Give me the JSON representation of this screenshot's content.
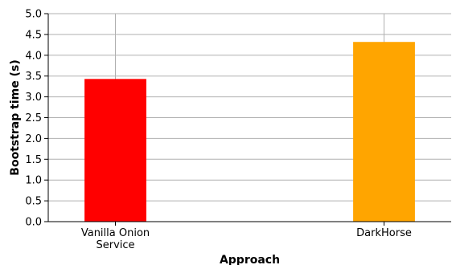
{
  "chart_data": {
    "type": "bar",
    "categories": [
      [
        "Vanilla Onion",
        "Service"
      ],
      [
        "DarkHorse"
      ]
    ],
    "values": [
      3.43,
      4.32
    ],
    "colors": [
      "#ff0000",
      "#ffa500"
    ],
    "xlabel": "Approach",
    "ylabel": "Bootstrap time (s)",
    "ylim": [
      0,
      5.0
    ],
    "yticks": [
      "0.0",
      "0.5",
      "1.0",
      "1.5",
      "2.0",
      "2.5",
      "3.0",
      "3.5",
      "4.0",
      "4.5",
      "5.0"
    ],
    "grid": true
  }
}
